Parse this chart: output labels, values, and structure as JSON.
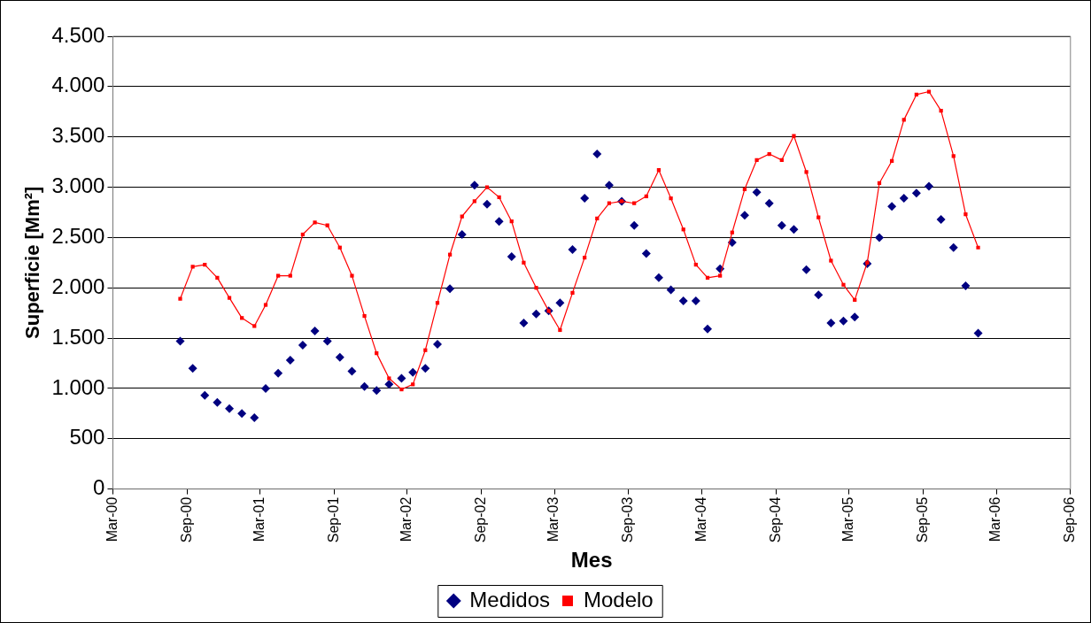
{
  "chart_data": {
    "type": "line",
    "xlabel": "Mes",
    "ylabel": "Superficie [Mm²]",
    "x": [
      "2000-08-15",
      "2000-09-15",
      "2000-10-15",
      "2000-11-15",
      "2000-12-15",
      "2001-01-15",
      "2001-02-15",
      "2001-03-15",
      "2001-04-15",
      "2001-05-15",
      "2001-06-15",
      "2001-07-15",
      "2001-08-15",
      "2001-09-15",
      "2001-10-15",
      "2001-11-15",
      "2001-12-15",
      "2002-01-15",
      "2002-02-15",
      "2002-03-15",
      "2002-04-15",
      "2002-05-15",
      "2002-06-15",
      "2002-07-15",
      "2002-08-15",
      "2002-09-15",
      "2002-10-15",
      "2002-11-15",
      "2002-12-15",
      "2003-01-15",
      "2003-02-15",
      "2003-03-15",
      "2003-04-15",
      "2003-05-15",
      "2003-06-15",
      "2003-07-15",
      "2003-08-15",
      "2003-09-15",
      "2003-10-15",
      "2003-11-15",
      "2003-12-15",
      "2004-01-15",
      "2004-02-15",
      "2004-03-15",
      "2004-04-15",
      "2004-05-15",
      "2004-06-15",
      "2004-07-15",
      "2004-08-15",
      "2004-09-15",
      "2004-10-15",
      "2004-11-15",
      "2004-12-15",
      "2005-01-15",
      "2005-02-15",
      "2005-03-15",
      "2005-04-15",
      "2005-05-15",
      "2005-06-15",
      "2005-07-15",
      "2005-08-15",
      "2005-09-15",
      "2005-10-15",
      "2005-11-15",
      "2005-12-15",
      "2006-01-15"
    ],
    "series": [
      {
        "name": "Medidos",
        "type": "scatter",
        "marker": "diamond",
        "color": "#000080",
        "values": [
          1470,
          1200,
          930,
          860,
          800,
          750,
          710,
          1000,
          1150,
          1280,
          1430,
          1570,
          1470,
          1310,
          1170,
          1020,
          980,
          1040,
          1100,
          1160,
          1200,
          1440,
          1990,
          2530,
          3020,
          2830,
          2660,
          2310,
          1650,
          1740,
          1770,
          1850,
          2380,
          2890,
          3330,
          3020,
          2860,
          2620,
          2340,
          2100,
          1980,
          1870,
          1870,
          1590,
          2190,
          2450,
          2720,
          2950,
          2840,
          2620,
          2580,
          2180,
          1930,
          1650,
          1670,
          1710,
          2240,
          2500,
          2810,
          2890,
          2940,
          3010,
          2680,
          2400,
          2020,
          1550
        ]
      },
      {
        "name": "Modelo",
        "marker": "square",
        "color": "#ff0000",
        "values": [
          1890,
          2210,
          2230,
          2100,
          1900,
          1700,
          1620,
          1830,
          2120,
          2120,
          2530,
          2650,
          2620,
          2400,
          2120,
          1720,
          1350,
          1100,
          990,
          1040,
          1380,
          1850,
          2330,
          2710,
          2860,
          3000,
          2900,
          2660,
          2250,
          2000,
          1770,
          1580,
          1950,
          2300,
          2690,
          2840,
          2860,
          2840,
          2910,
          3170,
          2890,
          2580,
          2230,
          2100,
          2120,
          2550,
          2980,
          3270,
          3330,
          3270,
          3510,
          3150,
          2700,
          2270,
          2030,
          1880,
          2250,
          3040,
          3260,
          3670,
          3920,
          3950,
          3760,
          3310,
          2730,
          2400
        ]
      }
    ],
    "xlim": [
      "2000-03",
      "2006-09"
    ],
    "xticks": [
      {
        "value": "2000-03",
        "label": "Mar-00"
      },
      {
        "value": "2000-09",
        "label": "Sep-00"
      },
      {
        "value": "2001-03",
        "label": "Mar-01"
      },
      {
        "value": "2001-09",
        "label": "Sep-01"
      },
      {
        "value": "2002-03",
        "label": "Mar-02"
      },
      {
        "value": "2002-09",
        "label": "Sep-02"
      },
      {
        "value": "2003-03",
        "label": "Mar-03"
      },
      {
        "value": "2003-09",
        "label": "Sep-03"
      },
      {
        "value": "2004-03",
        "label": "Mar-04"
      },
      {
        "value": "2004-09",
        "label": "Sep-04"
      },
      {
        "value": "2005-03",
        "label": "Mar-05"
      },
      {
        "value": "2005-09",
        "label": "Sep-05"
      },
      {
        "value": "2006-03",
        "label": "Mar-06"
      },
      {
        "value": "2006-09",
        "label": "Sep-06"
      }
    ],
    "ylim": [
      0,
      4500
    ],
    "yticks": [
      0,
      {
        "value": 500,
        "label": "500"
      },
      {
        "value": 1000,
        "label": "1.000"
      },
      {
        "value": 1500,
        "label": "1.500"
      },
      {
        "value": 2000,
        "label": "2.000"
      },
      {
        "value": 2500,
        "label": "2.500"
      },
      {
        "value": 3000,
        "label": "3.000"
      },
      {
        "value": 3500,
        "label": "3.500"
      },
      {
        "value": 4000,
        "label": "4.000"
      },
      {
        "value": 4500,
        "label": "4.500"
      }
    ],
    "grid": "y",
    "legend": "bottom"
  }
}
